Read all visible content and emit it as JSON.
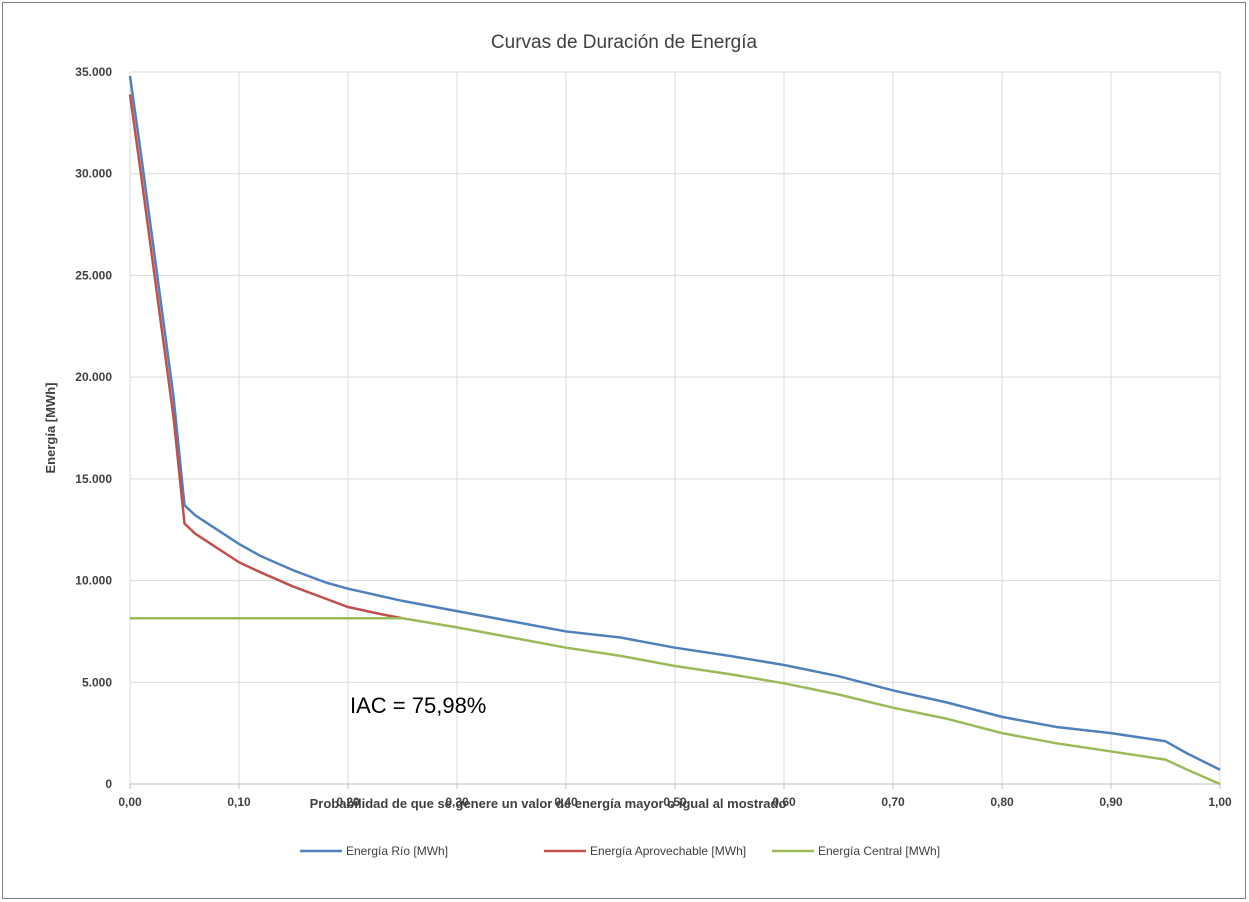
{
  "chart_data": {
    "type": "line",
    "title": "Curvas de Duración de Energía",
    "xlabel": "Probabilidad de que se genere un valor de energía mayor o igual al mostrado",
    "ylabel": "Energía [MWh]",
    "xlim": [
      0,
      1
    ],
    "ylim": [
      0,
      35000
    ],
    "x_ticks": [
      "0,00",
      "0,10",
      "0,20",
      "0,30",
      "0,40",
      "0,50",
      "0,60",
      "0,70",
      "0,80",
      "0,90",
      "1,00"
    ],
    "y_ticks": [
      "0",
      "5.000",
      "10.000",
      "15.000",
      "20.000",
      "25.000",
      "30.000",
      "35.000"
    ],
    "grid": true,
    "legend_position": "bottom",
    "annotation": "IAC = 75,98%",
    "series": [
      {
        "name": "Energía Río [MWh]",
        "color": "#4f81bd",
        "points": [
          [
            0.0,
            34800
          ],
          [
            0.01,
            31000
          ],
          [
            0.02,
            27000
          ],
          [
            0.03,
            23000
          ],
          [
            0.04,
            19000
          ],
          [
            0.05,
            13700
          ],
          [
            0.06,
            13200
          ],
          [
            0.08,
            12500
          ],
          [
            0.1,
            11800
          ],
          [
            0.12,
            11200
          ],
          [
            0.15,
            10500
          ],
          [
            0.18,
            9900
          ],
          [
            0.2,
            9600
          ],
          [
            0.25,
            9000
          ],
          [
            0.3,
            8500
          ],
          [
            0.35,
            8000
          ],
          [
            0.4,
            7500
          ],
          [
            0.45,
            7200
          ],
          [
            0.5,
            6700
          ],
          [
            0.55,
            6300
          ],
          [
            0.6,
            5850
          ],
          [
            0.65,
            5300
          ],
          [
            0.7,
            4600
          ],
          [
            0.75,
            4000
          ],
          [
            0.8,
            3300
          ],
          [
            0.85,
            2800
          ],
          [
            0.9,
            2500
          ],
          [
            0.95,
            2100
          ],
          [
            0.97,
            1500
          ],
          [
            1.0,
            700
          ]
        ]
      },
      {
        "name": "Energía Aprovechable [MWh]",
        "color": "#c0504d",
        "points": [
          [
            0.0,
            33900
          ],
          [
            0.01,
            30000
          ],
          [
            0.02,
            26000
          ],
          [
            0.03,
            22000
          ],
          [
            0.04,
            18000
          ],
          [
            0.05,
            12800
          ],
          [
            0.06,
            12300
          ],
          [
            0.08,
            11600
          ],
          [
            0.1,
            10900
          ],
          [
            0.12,
            10400
          ],
          [
            0.15,
            9700
          ],
          [
            0.18,
            9100
          ],
          [
            0.2,
            8700
          ],
          [
            0.23,
            8350
          ],
          [
            0.25,
            8150
          ]
        ]
      },
      {
        "name": "Energía Central [MWh]",
        "color": "#9bbb59",
        "points": [
          [
            0.0,
            8150
          ],
          [
            0.25,
            8150
          ],
          [
            0.3,
            7700
          ],
          [
            0.35,
            7200
          ],
          [
            0.4,
            6700
          ],
          [
            0.45,
            6300
          ],
          [
            0.5,
            5800
          ],
          [
            0.55,
            5400
          ],
          [
            0.6,
            4950
          ],
          [
            0.65,
            4400
          ],
          [
            0.7,
            3750
          ],
          [
            0.75,
            3200
          ],
          [
            0.8,
            2500
          ],
          [
            0.85,
            2000
          ],
          [
            0.9,
            1600
          ],
          [
            0.95,
            1200
          ],
          [
            0.97,
            700
          ],
          [
            1.0,
            0
          ]
        ]
      }
    ]
  }
}
